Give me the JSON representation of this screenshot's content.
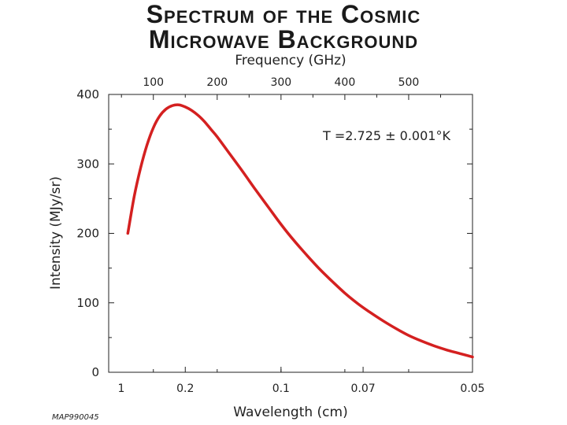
{
  "chart_data": {
    "type": "line",
    "title_line1": "Spectrum of the Cosmic",
    "title_line2": "Microwave Background",
    "top_axis": {
      "label": "Frequency (GHz)",
      "ticks": [
        100,
        200,
        300,
        400,
        500
      ],
      "range": [
        30,
        600
      ]
    },
    "bottom_axis": {
      "label": "Wavelength (cm)",
      "tick_labels": [
        "1",
        "0.2",
        "0.1",
        "0.07",
        "0.05"
      ],
      "tick_frequencies_ghz": [
        30,
        150,
        300,
        428.6,
        600
      ]
    },
    "y_axis": {
      "label": "Intensity (MJy/sr)",
      "ticks": [
        0,
        100,
        200,
        300,
        400
      ],
      "range": [
        0,
        400
      ]
    },
    "annotation": "T =2.725 ± 0.001°K",
    "series": [
      {
        "color": "#d42020",
        "x_unit": "GHz",
        "x": [
          60,
          70,
          80,
          90,
          100,
          110,
          120,
          130,
          140,
          150,
          160,
          170,
          180,
          190,
          200,
          220,
          240,
          260,
          280,
          300,
          320,
          340,
          360,
          380,
          400,
          420,
          440,
          460,
          480,
          500,
          520,
          540,
          560,
          580,
          600
        ],
        "y": [
          200,
          253,
          294,
          327,
          352,
          369,
          379,
          384,
          385,
          382,
          377,
          370,
          361,
          350,
          339,
          314,
          289,
          263,
          238,
          213,
          190,
          169,
          149,
          131,
          114,
          99,
          86,
          74,
          63,
          53,
          45,
          38,
          32,
          27,
          22
        ]
      }
    ]
  },
  "footer": {
    "code": "MAP990045"
  }
}
